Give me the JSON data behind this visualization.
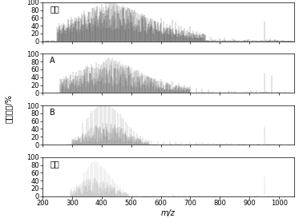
{
  "labels": [
    "原水",
    "A",
    "B",
    "出水"
  ],
  "colors": [
    "#3a3a3a",
    "#555555",
    "#787878",
    "#aaaaaa"
  ],
  "xmin": 200,
  "xmax": 1050,
  "yticks": [
    0,
    20,
    40,
    60,
    80,
    100
  ],
  "ylabel": "相对丰度/%",
  "xlabel": "m/z",
  "title_fontsize": 7,
  "tick_fontsize": 6,
  "label_fontsize": 7,
  "xticks": [
    200,
    300,
    400,
    500,
    600,
    700,
    800,
    900,
    1000
  ]
}
